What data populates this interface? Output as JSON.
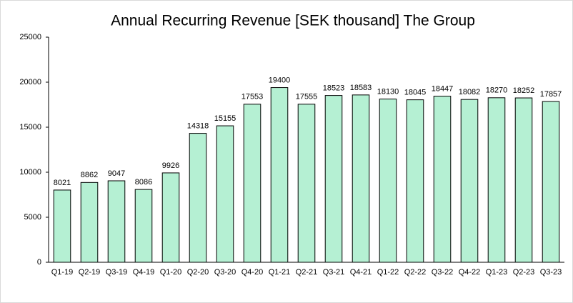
{
  "chart_data": {
    "type": "bar",
    "title": "Annual Recurring Revenue [SEK thousand] The Group",
    "categories": [
      "Q1-19",
      "Q2-19",
      "Q3-19",
      "Q4-19",
      "Q1-20",
      "Q2-20",
      "Q3-20",
      "Q4-20",
      "Q1-21",
      "Q2-21",
      "Q3-21",
      "Q4-21",
      "Q1-22",
      "Q2-22",
      "Q3-22",
      "Q4-22",
      "Q1-23",
      "Q2-23",
      "Q3-23"
    ],
    "values": [
      8021,
      8862,
      9047,
      8086,
      9926,
      14318,
      15155,
      17553,
      19400,
      17555,
      18523,
      18583,
      18130,
      18045,
      18447,
      18082,
      18270,
      18252,
      17857
    ],
    "color": "#b5f0d3",
    "ylim": [
      0,
      25000
    ],
    "yticks": [
      0,
      5000,
      10000,
      15000,
      20000,
      25000
    ],
    "grid": false
  }
}
